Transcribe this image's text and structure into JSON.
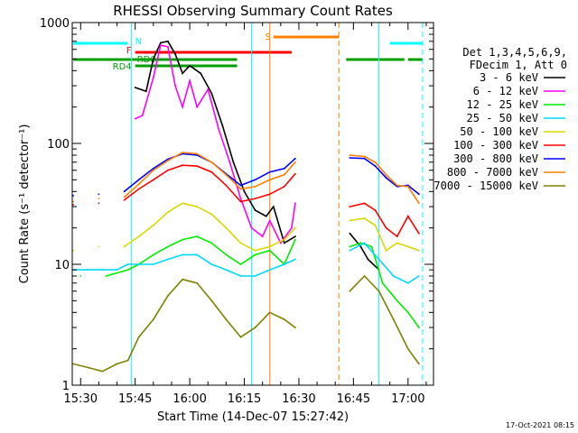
{
  "chart_data": {
    "type": "line",
    "title": "RHESSI Observing Summary Count Rates",
    "xlabel": "Start Time (14-Dec-07 15:27:42)",
    "ylabel": "Count Rate (s⁻¹ detector⁻¹)",
    "y_scale": "log",
    "ylim": [
      1,
      1000
    ],
    "xlim": [
      "15:27:42",
      "17:07:00"
    ],
    "x_ticks": [
      "15:30",
      "15:45",
      "16:00",
      "16:15",
      "16:30",
      "16:45",
      "17:00"
    ],
    "y_ticks": [
      "1",
      "10",
      "100",
      "1000"
    ],
    "footer_date": "17-Oct-2021 08:15",
    "legend": {
      "position": "right",
      "header": [
        "Det 1,3,4,5,6,9,",
        "FDecim 1, Att 0"
      ]
    },
    "flags": [
      {
        "label": "N",
        "color": "#00ffff",
        "segments": [
          [
            "15:28",
            "15:43"
          ],
          [
            "16:55",
            "17:04"
          ]
        ]
      },
      {
        "label": "F",
        "color": "#ff0000",
        "segments": [
          [
            "15:45",
            "16:28"
          ]
        ]
      },
      {
        "label": "RD0",
        "color": "#00a000",
        "segments": [
          [
            "15:28",
            "16:13"
          ],
          [
            "16:43",
            "16:59"
          ],
          [
            "17:00",
            "17:04"
          ]
        ]
      },
      {
        "label": "RD4",
        "color": "#00a000",
        "segments": [
          [
            "15:45",
            "16:13"
          ]
        ]
      },
      {
        "label": "S",
        "color": "#ff8000",
        "segments": [
          [
            "16:23",
            "16:41"
          ]
        ]
      }
    ],
    "vlines": [
      {
        "time": "15:44",
        "color": "#00ffff",
        "style": "solid"
      },
      {
        "time": "16:17",
        "color": "#00ffff",
        "style": "solid"
      },
      {
        "time": "16:22",
        "color": "#ff8000",
        "style": "solid"
      },
      {
        "time": "16:41",
        "color": "#ff8000",
        "style": "dashed"
      },
      {
        "time": "16:52",
        "color": "#00ffff",
        "style": "solid"
      },
      {
        "time": "17:04",
        "color": "#00ffff",
        "style": "dashed"
      }
    ],
    "series": [
      {
        "name": "3 - 6 keV",
        "color": "#000000",
        "x": [
          "15:45",
          "15:48",
          "15:50",
          "15:52",
          "15:54",
          "15:56",
          "15:58",
          "16:00",
          "16:03",
          "16:06",
          "16:09",
          "16:12",
          "16:15",
          "16:18",
          "16:21",
          "16:23",
          "16:26",
          "16:29",
          "16:44",
          "16:47",
          "16:49",
          "16:52"
        ],
        "y": [
          290,
          270,
          500,
          680,
          700,
          550,
          380,
          440,
          380,
          260,
          140,
          70,
          40,
          28,
          25,
          30,
          15,
          17,
          18,
          14,
          11,
          9
        ]
      },
      {
        "name": "6 - 12 keV",
        "color": "#ff00ff",
        "x": [
          "15:45",
          "15:47",
          "15:50",
          "15:52",
          "15:54",
          "15:56",
          "15:58",
          "16:00",
          "16:02",
          "16:05",
          "16:08",
          "16:11",
          "16:14",
          "16:17",
          "16:20",
          "16:22",
          "16:25",
          "16:28",
          "16:29"
        ],
        "y": [
          160,
          170,
          350,
          650,
          630,
          300,
          200,
          330,
          200,
          280,
          130,
          70,
          35,
          20,
          17,
          23,
          15,
          20,
          32
        ]
      },
      {
        "name": "12 - 25 keV",
        "color": "#00ee00",
        "x": [
          "15:30",
          "15:37",
          "15:43",
          "15:46",
          "15:50",
          "15:54",
          "15:58",
          "16:02",
          "16:06",
          "16:10",
          "16:14",
          "16:18",
          "16:22",
          "16:26",
          "16:29",
          "16:44",
          "16:47",
          "16:50",
          "16:53",
          "16:57",
          "17:00",
          "17:03"
        ],
        "y": [
          8,
          8,
          9,
          10,
          12,
          14,
          16,
          17,
          15,
          12,
          10,
          12,
          13,
          10,
          16,
          14,
          15,
          14,
          7,
          5,
          4,
          3
        ]
      },
      {
        "name": "25 - 50 keV",
        "color": "#00d8ff",
        "x": [
          "15:28",
          "15:32",
          "15:36",
          "15:40",
          "15:43",
          "15:46",
          "15:50",
          "15:54",
          "15:58",
          "16:02",
          "16:06",
          "16:10",
          "16:14",
          "16:18",
          "16:22",
          "16:26",
          "16:29",
          "16:44",
          "16:48",
          "16:52",
          "16:56",
          "17:00",
          "17:03"
        ],
        "y": [
          9,
          9,
          9,
          9,
          10,
          10,
          10,
          11,
          12,
          12,
          10,
          9,
          8,
          8,
          9,
          10,
          11,
          13,
          15,
          11,
          8,
          7,
          8
        ]
      },
      {
        "name": "50 - 100 keV",
        "color": "#d8d800",
        "x": [
          "15:28",
          "15:35",
          "15:42",
          "15:46",
          "15:50",
          "15:54",
          "15:58",
          "16:02",
          "16:06",
          "16:10",
          "16:14",
          "16:18",
          "16:22",
          "16:26",
          "16:29",
          "16:44",
          "16:48",
          "16:51",
          "16:54",
          "16:57",
          "17:00",
          "17:03"
        ],
        "y": [
          13,
          14,
          14,
          17,
          21,
          27,
          32,
          30,
          26,
          20,
          15,
          13,
          14,
          16,
          20,
          23,
          24,
          21,
          13,
          15,
          14,
          13
        ]
      },
      {
        "name": "100 - 300 keV",
        "color": "#ff0000",
        "x": [
          "15:28",
          "15:35",
          "15:42",
          "15:46",
          "15:50",
          "15:54",
          "15:58",
          "16:02",
          "16:06",
          "16:10",
          "16:14",
          "16:18",
          "16:22",
          "16:26",
          "16:29",
          "16:44",
          "16:48",
          "16:51",
          "16:54",
          "16:57",
          "17:00",
          "17:03"
        ],
        "y": [
          31,
          32,
          34,
          42,
          50,
          60,
          66,
          65,
          58,
          45,
          33,
          35,
          38,
          44,
          56,
          30,
          32,
          28,
          20,
          17,
          25,
          18
        ]
      },
      {
        "name": "300 - 800 keV",
        "color": "#0000ff",
        "x": [
          "15:28",
          "15:35",
          "15:42",
          "15:46",
          "15:50",
          "15:54",
          "15:58",
          "16:02",
          "16:06",
          "16:10",
          "16:14",
          "16:18",
          "16:22",
          "16:26",
          "16:29",
          "16:44",
          "16:48",
          "16:51",
          "16:54",
          "16:57",
          "17:00",
          "17:03"
        ],
        "y": [
          37,
          38,
          40,
          50,
          62,
          74,
          82,
          80,
          70,
          56,
          45,
          50,
          58,
          62,
          75,
          76,
          75,
          65,
          52,
          44,
          45,
          38
        ]
      },
      {
        "name": "800 - 7000 keV",
        "color": "#ff8000",
        "x": [
          "15:28",
          "15:35",
          "15:42",
          "15:46",
          "15:50",
          "15:54",
          "15:58",
          "16:02",
          "16:06",
          "16:10",
          "16:14",
          "16:18",
          "16:22",
          "16:26",
          "16:29",
          "16:44",
          "16:48",
          "16:51",
          "16:54",
          "16:57",
          "17:00",
          "17:03"
        ],
        "y": [
          33,
          35,
          36,
          46,
          60,
          72,
          84,
          82,
          70,
          55,
          42,
          44,
          50,
          55,
          70,
          80,
          78,
          70,
          55,
          45,
          44,
          32
        ]
      },
      {
        "name": "7000 - 15000 keV",
        "color": "#808000",
        "x": [
          "15:28",
          "15:32",
          "15:36",
          "15:40",
          "15:43",
          "15:46",
          "15:50",
          "15:54",
          "15:58",
          "16:02",
          "16:06",
          "16:10",
          "16:14",
          "16:18",
          "16:22",
          "16:26",
          "16:29",
          "16:44",
          "16:48",
          "16:52",
          "16:56",
          "17:00",
          "17:03"
        ],
        "y": [
          1.5,
          1.4,
          1.3,
          1.5,
          1.6,
          2.5,
          3.5,
          5.5,
          7.5,
          7,
          5,
          3.5,
          2.5,
          3,
          4,
          3.5,
          3,
          6,
          8,
          6,
          3.5,
          2,
          1.5
        ]
      }
    ]
  }
}
